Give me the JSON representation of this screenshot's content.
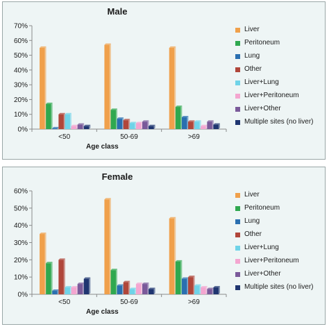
{
  "chart_data": [
    {
      "type": "bar",
      "title": "Male",
      "xlabel": "Age class",
      "ylabel": "",
      "ylim": [
        0,
        70
      ],
      "yticks": [
        "0%",
        "10%",
        "20%",
        "30%",
        "40%",
        "50%",
        "60%",
        "70%"
      ],
      "legend_position": "right",
      "categories": [
        "<50",
        "50-69",
        ">69"
      ],
      "series": [
        {
          "name": "Liver",
          "color": "#f0a04b",
          "values": [
            55,
            57,
            55
          ]
        },
        {
          "name": "Peritoneum",
          "color": "#2fa84f",
          "values": [
            17,
            13,
            15
          ]
        },
        {
          "name": "Lung",
          "color": "#2a6fb0",
          "values": [
            0.5,
            7,
            8
          ]
        },
        {
          "name": "Other",
          "color": "#b0463a",
          "values": [
            10,
            6,
            5
          ]
        },
        {
          "name": "Liver+Lung",
          "color": "#6fd3e8",
          "values": [
            10,
            4,
            5
          ]
        },
        {
          "name": "Liver+Peritoneum",
          "color": "#f4a6d0",
          "values": [
            2,
            4,
            2
          ]
        },
        {
          "name": "Liver+Other",
          "color": "#7a5a9a",
          "values": [
            3,
            5,
            5
          ]
        },
        {
          "name": "Multiple sites (no liver)",
          "color": "#1f3570",
          "values": [
            2,
            2,
            3
          ]
        }
      ]
    },
    {
      "type": "bar",
      "title": "Female",
      "xlabel": "Age class",
      "ylabel": "",
      "ylim": [
        0,
        60
      ],
      "yticks": [
        "0%",
        "10%",
        "20%",
        "30%",
        "40%",
        "50%",
        "60%"
      ],
      "legend_position": "right",
      "categories": [
        "<50",
        "50-69",
        ">69"
      ],
      "series": [
        {
          "name": "Liver",
          "color": "#f0a04b",
          "values": [
            35,
            55,
            44
          ]
        },
        {
          "name": "Peritoneum",
          "color": "#2fa84f",
          "values": [
            18,
            14,
            19
          ]
        },
        {
          "name": "Lung",
          "color": "#2a6fb0",
          "values": [
            2,
            5,
            9
          ]
        },
        {
          "name": "Other",
          "color": "#b0463a",
          "values": [
            20,
            7,
            10
          ]
        },
        {
          "name": "Liver+Lung",
          "color": "#6fd3e8",
          "values": [
            4,
            3,
            5
          ]
        },
        {
          "name": "Liver+Peritoneum",
          "color": "#f4a6d0",
          "values": [
            4,
            6,
            4
          ]
        },
        {
          "name": "Liver+Other",
          "color": "#7a5a9a",
          "values": [
            6,
            6,
            3
          ]
        },
        {
          "name": "Multiple sites (no liver)",
          "color": "#1f3570",
          "values": [
            9,
            3,
            4
          ]
        }
      ]
    }
  ]
}
